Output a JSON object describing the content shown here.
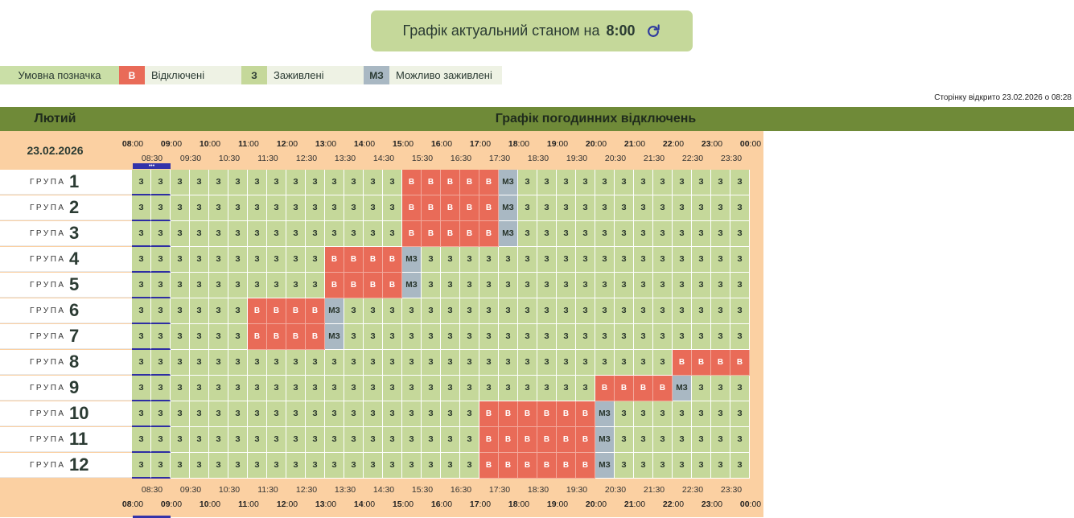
{
  "banner": {
    "text": "Графік актуальний станом на",
    "time": "8:00",
    "refresh_icon": "refresh-icon"
  },
  "legend": {
    "title": "Умовна позначка",
    "items": [
      {
        "code": "В",
        "label": "Відключені",
        "color": "#e96b58"
      },
      {
        "code": "З",
        "label": "Заживлені",
        "color": "#c5d89a"
      },
      {
        "code": "МЗ",
        "label": "Можливо заживлені",
        "color": "#a9b8c3"
      }
    ]
  },
  "opened_text": "Сторінку відкрито 23.02.2026 о 08:28",
  "header": {
    "month": "Лютий",
    "title": "Графік погодинних відключень"
  },
  "date": "23.02.2026",
  "hours": [
    "08",
    "09",
    "10",
    "11",
    "12",
    "13",
    "14",
    "15",
    "16",
    "17",
    "18",
    "19",
    "20",
    "21",
    "22",
    "23",
    "00"
  ],
  "minutes": ":00",
  "half_hours": [
    "08:30",
    "09:30",
    "10:30",
    "11:30",
    "12:30",
    "13:30",
    "14:30",
    "15:30",
    "16:30",
    "17:30",
    "18:30",
    "19:30",
    "20:30",
    "21:30",
    "22:30",
    "23:30"
  ],
  "group_word": "ГРУПА",
  "groups": [
    {
      "num": "1",
      "cells": [
        "З",
        "З",
        "З",
        "З",
        "З",
        "З",
        "З",
        "З",
        "З",
        "З",
        "З",
        "З",
        "З",
        "З",
        "В",
        "В",
        "В",
        "В",
        "В",
        "МЗ",
        "З",
        "З",
        "З",
        "З",
        "З",
        "З",
        "З",
        "З",
        "З",
        "З",
        "З",
        "З"
      ]
    },
    {
      "num": "2",
      "cells": [
        "З",
        "З",
        "З",
        "З",
        "З",
        "З",
        "З",
        "З",
        "З",
        "З",
        "З",
        "З",
        "З",
        "З",
        "В",
        "В",
        "В",
        "В",
        "В",
        "МЗ",
        "З",
        "З",
        "З",
        "З",
        "З",
        "З",
        "З",
        "З",
        "З",
        "З",
        "З",
        "З"
      ]
    },
    {
      "num": "3",
      "cells": [
        "З",
        "З",
        "З",
        "З",
        "З",
        "З",
        "З",
        "З",
        "З",
        "З",
        "З",
        "З",
        "З",
        "З",
        "В",
        "В",
        "В",
        "В",
        "В",
        "МЗ",
        "З",
        "З",
        "З",
        "З",
        "З",
        "З",
        "З",
        "З",
        "З",
        "З",
        "З",
        "З"
      ]
    },
    {
      "num": "4",
      "cells": [
        "З",
        "З",
        "З",
        "З",
        "З",
        "З",
        "З",
        "З",
        "З",
        "З",
        "В",
        "В",
        "В",
        "В",
        "МЗ",
        "З",
        "З",
        "З",
        "З",
        "З",
        "З",
        "З",
        "З",
        "З",
        "З",
        "З",
        "З",
        "З",
        "З",
        "З",
        "З",
        "З"
      ]
    },
    {
      "num": "5",
      "cells": [
        "З",
        "З",
        "З",
        "З",
        "З",
        "З",
        "З",
        "З",
        "З",
        "З",
        "В",
        "В",
        "В",
        "В",
        "МЗ",
        "З",
        "З",
        "З",
        "З",
        "З",
        "З",
        "З",
        "З",
        "З",
        "З",
        "З",
        "З",
        "З",
        "З",
        "З",
        "З",
        "З"
      ]
    },
    {
      "num": "6",
      "cells": [
        "З",
        "З",
        "З",
        "З",
        "З",
        "З",
        "В",
        "В",
        "В",
        "В",
        "МЗ",
        "З",
        "З",
        "З",
        "З",
        "З",
        "З",
        "З",
        "З",
        "З",
        "З",
        "З",
        "З",
        "З",
        "З",
        "З",
        "З",
        "З",
        "З",
        "З",
        "З",
        "З"
      ]
    },
    {
      "num": "7",
      "cells": [
        "З",
        "З",
        "З",
        "З",
        "З",
        "З",
        "В",
        "В",
        "В",
        "В",
        "МЗ",
        "З",
        "З",
        "З",
        "З",
        "З",
        "З",
        "З",
        "З",
        "З",
        "З",
        "З",
        "З",
        "З",
        "З",
        "З",
        "З",
        "З",
        "З",
        "З",
        "З",
        "З"
      ]
    },
    {
      "num": "8",
      "cells": [
        "З",
        "З",
        "З",
        "З",
        "З",
        "З",
        "З",
        "З",
        "З",
        "З",
        "З",
        "З",
        "З",
        "З",
        "З",
        "З",
        "З",
        "З",
        "З",
        "З",
        "З",
        "З",
        "З",
        "З",
        "З",
        "З",
        "З",
        "З",
        "В",
        "В",
        "В",
        "В"
      ]
    },
    {
      "num": "9",
      "cells": [
        "З",
        "З",
        "З",
        "З",
        "З",
        "З",
        "З",
        "З",
        "З",
        "З",
        "З",
        "З",
        "З",
        "З",
        "З",
        "З",
        "З",
        "З",
        "З",
        "З",
        "З",
        "З",
        "З",
        "З",
        "В",
        "В",
        "В",
        "В",
        "МЗ",
        "З",
        "З",
        "З"
      ]
    },
    {
      "num": "10",
      "cells": [
        "З",
        "З",
        "З",
        "З",
        "З",
        "З",
        "З",
        "З",
        "З",
        "З",
        "З",
        "З",
        "З",
        "З",
        "З",
        "З",
        "З",
        "З",
        "В",
        "В",
        "В",
        "В",
        "В",
        "В",
        "МЗ",
        "З",
        "З",
        "З",
        "З",
        "З",
        "З",
        "З"
      ]
    },
    {
      "num": "11",
      "cells": [
        "З",
        "З",
        "З",
        "З",
        "З",
        "З",
        "З",
        "З",
        "З",
        "З",
        "З",
        "З",
        "З",
        "З",
        "З",
        "З",
        "З",
        "З",
        "В",
        "В",
        "В",
        "В",
        "В",
        "В",
        "МЗ",
        "З",
        "З",
        "З",
        "З",
        "З",
        "З",
        "З"
      ]
    },
    {
      "num": "12",
      "cells": [
        "З",
        "З",
        "З",
        "З",
        "З",
        "З",
        "З",
        "З",
        "З",
        "З",
        "З",
        "З",
        "З",
        "З",
        "З",
        "З",
        "З",
        "З",
        "В",
        "В",
        "В",
        "В",
        "В",
        "В",
        "МЗ",
        "З",
        "З",
        "З",
        "З",
        "З",
        "З",
        "З"
      ]
    }
  ],
  "current_marker": "•••"
}
